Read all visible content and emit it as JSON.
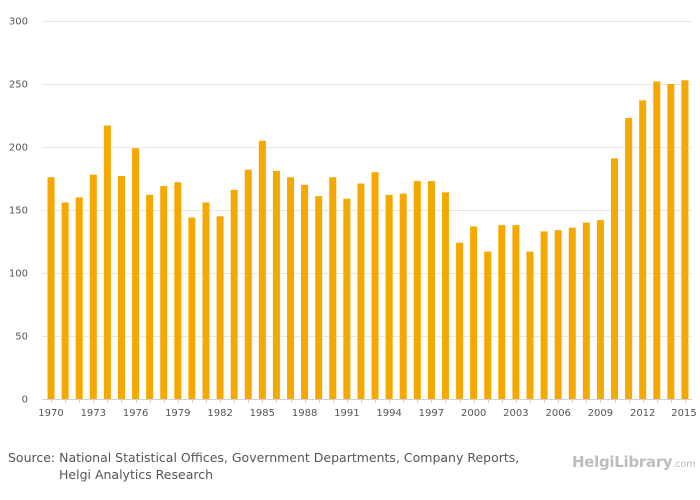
{
  "chart_data": {
    "type": "bar",
    "categories": [
      "1970",
      "1971",
      "1972",
      "1973",
      "1974",
      "1975",
      "1976",
      "1977",
      "1978",
      "1979",
      "1980",
      "1981",
      "1982",
      "1983",
      "1984",
      "1985",
      "1986",
      "1987",
      "1988",
      "1989",
      "1990",
      "1991",
      "1992",
      "1993",
      "1994",
      "1995",
      "1996",
      "1997",
      "1998",
      "1999",
      "2000",
      "2001",
      "2002",
      "2003",
      "2004",
      "2005",
      "2006",
      "2007",
      "2008",
      "2009",
      "2010",
      "2011",
      "2012",
      "2013",
      "2014",
      "2015"
    ],
    "values": [
      176,
      156,
      160,
      178,
      217,
      177,
      199,
      162,
      169,
      172,
      144,
      156,
      145,
      166,
      182,
      205,
      181,
      176,
      170,
      161,
      176,
      159,
      171,
      180,
      162,
      163,
      173,
      173,
      164,
      124,
      137,
      117,
      138,
      138,
      117,
      133,
      134,
      136,
      140,
      142,
      191,
      223,
      237,
      252,
      250,
      253
    ],
    "tick_labels": [
      "1970",
      "1973",
      "1976",
      "1979",
      "1982",
      "1985",
      "1988",
      "1991",
      "1994",
      "1997",
      "2000",
      "2003",
      "2006",
      "2009",
      "2012",
      "2015"
    ],
    "ylim": [
      0,
      300
    ],
    "yticks": [
      0,
      50,
      100,
      150,
      200,
      250,
      300
    ],
    "title": "",
    "xlabel": "",
    "ylabel": "",
    "bar_color": "#f5a800",
    "grid": true
  },
  "source": {
    "line1": "Source: National Statistical Offices, Government Departments, Company Reports,",
    "line2": "Helgi Analytics Research"
  },
  "logo": {
    "name": "HelgiLibrary",
    "tld": ".com",
    "icon": "library-building-icon",
    "color": "#bdbdbd"
  }
}
